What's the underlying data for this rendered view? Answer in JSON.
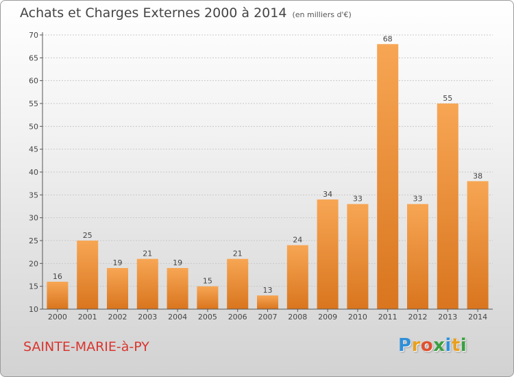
{
  "header": {
    "title": "Achats et Charges Externes 2000 à 2014",
    "unit": "(en milliers d'€)"
  },
  "footer": {
    "commune": "SAINTE-MARIE-à-PY",
    "logo_letters": [
      "P",
      "r",
      "o",
      "x",
      "i",
      "t",
      "i"
    ],
    "logo_colors": [
      "#2f8fd8",
      "#e8a020",
      "#e05030",
      "#3aa040",
      "#2f8fd8",
      "#e8a020",
      "#3aa040"
    ]
  },
  "colors": {
    "bar_light": "#f7a654",
    "bar_dark": "#d9751e",
    "axis": "#555555",
    "grid": "#c8c8c8"
  },
  "chart_data": {
    "type": "bar",
    "title": "Achats et Charges Externes 2000 à 2014",
    "ylabel": "(en milliers d'€)",
    "xlabel": "",
    "categories": [
      "2000",
      "2001",
      "2002",
      "2003",
      "2004",
      "2005",
      "2006",
      "2007",
      "2008",
      "2009",
      "2010",
      "2011",
      "2012",
      "2013",
      "2014"
    ],
    "values": [
      16,
      25,
      19,
      21,
      19,
      15,
      21,
      13,
      24,
      34,
      33,
      68,
      33,
      55,
      38
    ],
    "ylim": [
      10,
      70
    ],
    "yticks": [
      10,
      15,
      20,
      25,
      30,
      35,
      40,
      45,
      50,
      55,
      60,
      65,
      70
    ],
    "grid": true,
    "data_labels": true
  }
}
